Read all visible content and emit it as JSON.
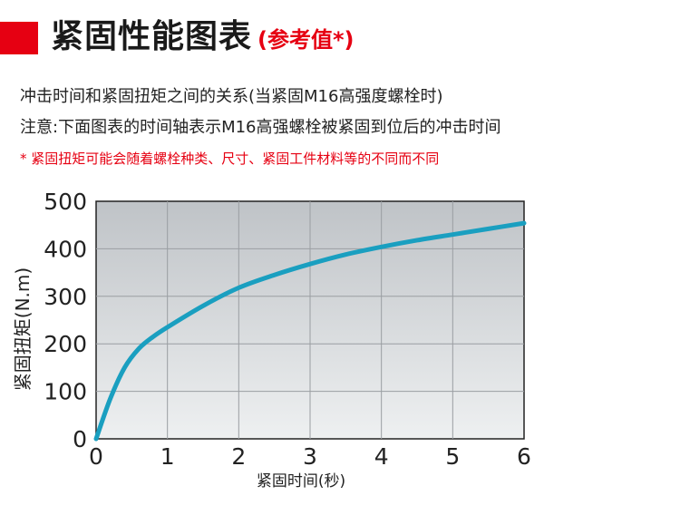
{
  "header": {
    "title": "紧固性能图表",
    "subtitle": "(参考值*)"
  },
  "description": {
    "line1": "冲击时间和紧固扭矩之间的关系(当紧固M16高强度螺栓时)",
    "line2": "注意:下面图表的时间轴表示M16高强螺栓被紧固到位后的冲击时间"
  },
  "note": "* 紧固扭矩可能会随着螺栓种类、尺寸、紧固工件材料等的不同而不同",
  "colors": {
    "accent": "#e60012",
    "curve": "#1a9fc0",
    "plot_bg_top": "#bfc3c7",
    "plot_bg_bottom": "#eef0f1"
  },
  "chart_data": {
    "type": "line",
    "xlabel": "紧固时间(秒)",
    "ylabel": "紧固扭矩(N.m)",
    "xlim": [
      0,
      6
    ],
    "ylim": [
      0,
      500
    ],
    "xticks": [
      "0",
      "1",
      "2",
      "3",
      "4",
      "5",
      "6"
    ],
    "yticks": [
      "0",
      "100",
      "200",
      "300",
      "400",
      "500"
    ],
    "grid": true,
    "series": [
      {
        "x": [
          0,
          0.2,
          0.4,
          0.6,
          0.8,
          1.0,
          1.5,
          2.0,
          2.5,
          3.0,
          3.5,
          4.0,
          4.5,
          5.0,
          5.5,
          6.0
        ],
        "values": [
          0,
          85,
          150,
          190,
          215,
          235,
          280,
          318,
          345,
          368,
          388,
          404,
          418,
          430,
          442,
          454
        ]
      }
    ]
  }
}
